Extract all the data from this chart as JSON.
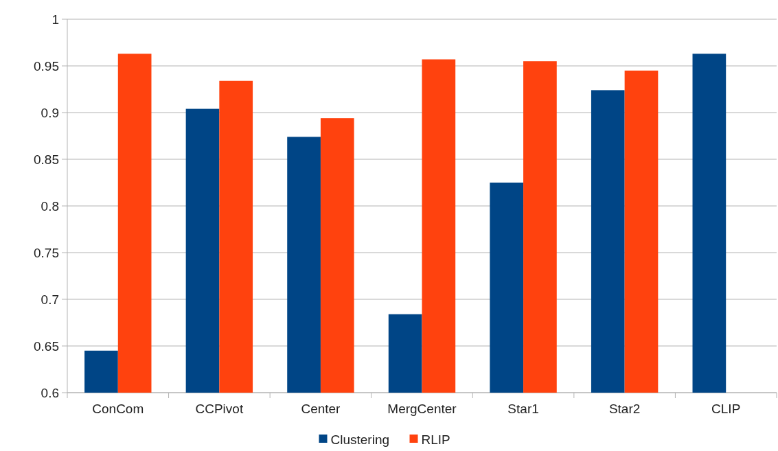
{
  "chart_data": {
    "type": "bar",
    "categories": [
      "ConCom",
      "CCPivot",
      "Center",
      "MergCenter",
      "Star1",
      "Star2",
      "CLIP"
    ],
    "series": [
      {
        "name": "Clustering",
        "color": "#004586",
        "values": [
          0.645,
          0.904,
          0.874,
          0.684,
          0.825,
          0.924,
          0.963
        ]
      },
      {
        "name": "RLIP",
        "color": "#ff420e",
        "values": [
          0.963,
          0.934,
          0.894,
          0.957,
          0.955,
          0.945,
          null
        ]
      }
    ],
    "ylim": [
      0.6,
      1
    ],
    "yticks": [
      0.6,
      0.65,
      0.7,
      0.75,
      0.8,
      0.85,
      0.9,
      0.95,
      1
    ],
    "grid": "y",
    "legend": "bottom"
  }
}
